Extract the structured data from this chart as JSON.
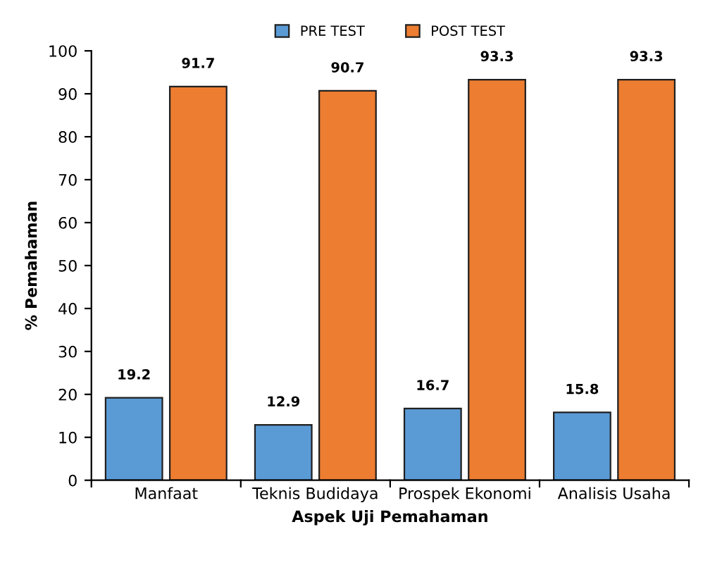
{
  "chart_data": {
    "type": "bar",
    "xlabel": "Aspek Uji Pemahaman",
    "ylabel": "% Pemahaman",
    "categories": [
      "Manfaat",
      "Teknis Budidaya",
      "Prospek Ekonomi",
      "Analisis Usaha"
    ],
    "series": [
      {
        "name": "PRE TEST",
        "color": "#5b9bd5",
        "values": [
          19.2,
          12.9,
          16.7,
          15.8
        ]
      },
      {
        "name": "POST TEST",
        "color": "#ed7d31",
        "values": [
          91.7,
          90.7,
          93.3,
          93.3
        ]
      }
    ],
    "ylim": [
      0,
      100
    ],
    "yticks": [
      0,
      10,
      20,
      30,
      40,
      50,
      60,
      70,
      80,
      90,
      100
    ],
    "grid": false,
    "legend": "top",
    "data_labels": true
  }
}
